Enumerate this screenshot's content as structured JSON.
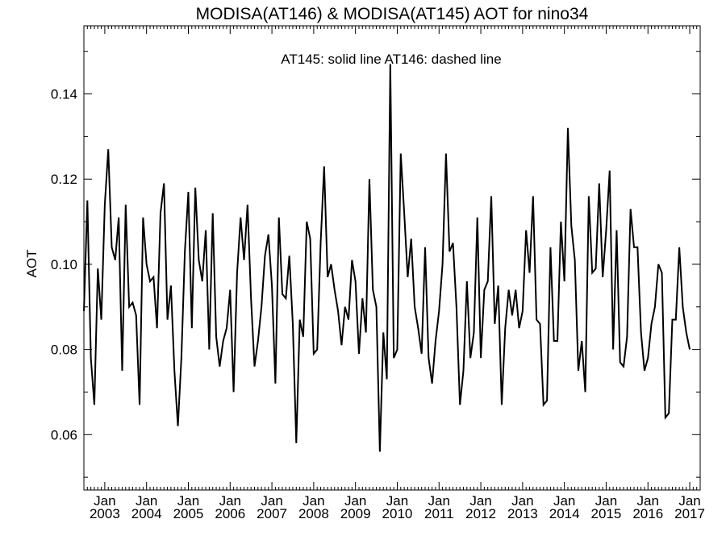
{
  "chart_data": {
    "type": "line",
    "title": "MODISA(AT146) & MODISA(AT145)  AOT for nino34",
    "ylabel": "AOT",
    "xlabel": "",
    "annotation": "AT145: solid line   AT146: dashed line",
    "ylim": [
      0.047,
      0.156
    ],
    "yticks": [
      "0.06",
      "0.08",
      "0.10",
      "0.12",
      "0.14"
    ],
    "xlim": [
      "2002-07",
      "2017-04"
    ],
    "xticks": [
      {
        "month": "Jan",
        "year": "2003"
      },
      {
        "month": "Jan",
        "year": "2004"
      },
      {
        "month": "Jan",
        "year": "2005"
      },
      {
        "month": "Jan",
        "year": "2006"
      },
      {
        "month": "Jan",
        "year": "2007"
      },
      {
        "month": "Jan",
        "year": "2008"
      },
      {
        "month": "Jan",
        "year": "2009"
      },
      {
        "month": "Jan",
        "year": "2010"
      },
      {
        "month": "Jan",
        "year": "2011"
      },
      {
        "month": "Jan",
        "year": "2012"
      },
      {
        "month": "Jan",
        "year": "2013"
      },
      {
        "month": "Jan",
        "year": "2014"
      },
      {
        "month": "Jan",
        "year": "2015"
      },
      {
        "month": "Jan",
        "year": "2016"
      },
      {
        "month": "Jan",
        "year": "2017"
      }
    ],
    "line_color": "#000000",
    "series": [
      {
        "start": "2002-07",
        "frequency": "monthly",
        "values": [
          0.089,
          0.115,
          0.078,
          0.067,
          0.099,
          0.087,
          0.114,
          0.127,
          0.104,
          0.101,
          0.111,
          0.075,
          0.114,
          0.09,
          0.091,
          0.088,
          0.067,
          0.111,
          0.1,
          0.096,
          0.097,
          0.085,
          0.112,
          0.119,
          0.087,
          0.095,
          0.075,
          0.062,
          0.078,
          0.103,
          0.117,
          0.085,
          0.118,
          0.101,
          0.096,
          0.108,
          0.08,
          0.112,
          0.083,
          0.076,
          0.082,
          0.085,
          0.094,
          0.07,
          0.098,
          0.111,
          0.101,
          0.114,
          0.092,
          0.076,
          0.082,
          0.09,
          0.102,
          0.107,
          0.095,
          0.072,
          0.111,
          0.093,
          0.092,
          0.102,
          0.086,
          0.058,
          0.087,
          0.083,
          0.11,
          0.106,
          0.079,
          0.08,
          0.105,
          0.123,
          0.097,
          0.1,
          0.094,
          0.089,
          0.081,
          0.09,
          0.087,
          0.101,
          0.096,
          0.079,
          0.092,
          0.084,
          0.12,
          0.094,
          0.09,
          0.056,
          0.084,
          0.073,
          0.147,
          0.078,
          0.08,
          0.126,
          0.112,
          0.097,
          0.106,
          0.09,
          0.085,
          0.079,
          0.104,
          0.078,
          0.072,
          0.082,
          0.089,
          0.1,
          0.126,
          0.103,
          0.105,
          0.09,
          0.067,
          0.075,
          0.096,
          0.078,
          0.084,
          0.111,
          0.078,
          0.094,
          0.096,
          0.116,
          0.086,
          0.095,
          0.067,
          0.085,
          0.094,
          0.088,
          0.094,
          0.085,
          0.089,
          0.108,
          0.098,
          0.116,
          0.087,
          0.086,
          0.067,
          0.068,
          0.104,
          0.082,
          0.082,
          0.11,
          0.096,
          0.132,
          0.109,
          0.101,
          0.075,
          0.082,
          0.07,
          0.116,
          0.098,
          0.099,
          0.119,
          0.097,
          0.108,
          0.122,
          0.08,
          0.108,
          0.077,
          0.076,
          0.083,
          0.113,
          0.104,
          0.104,
          0.084,
          0.075,
          0.078,
          0.086,
          0.09,
          0.1,
          0.098,
          0.064,
          0.065,
          0.087,
          0.087,
          0.104,
          0.09,
          0.084,
          0.08
        ]
      }
    ]
  }
}
